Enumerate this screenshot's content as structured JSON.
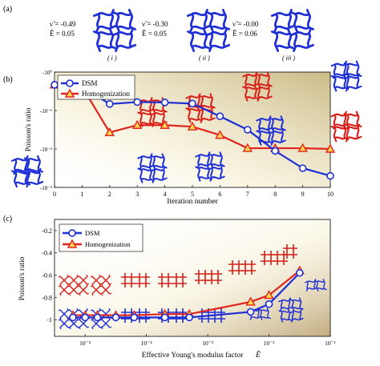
{
  "colors": {
    "dsm": "#1f2fd6",
    "homogenization": "#e0241c",
    "homog_marker_fill": "#ffd54f",
    "structure_blue": "#1f2fd6",
    "structure_red": "#d81e18",
    "shade": "#d8c98a"
  },
  "panel_a": {
    "label": "(a)",
    "items": [
      {
        "nu": "ν̃ = -0.49",
        "E": "Ẽ = 0.05",
        "tag": "( i )"
      },
      {
        "nu": "ν̃ = -0.30",
        "E": "Ẽ = 0.05",
        "tag": "( ii )"
      },
      {
        "nu": "ν̃ = -0.00",
        "E": "Ẽ = 0.06",
        "tag": "( iii )"
      }
    ]
  },
  "chart_data": [
    {
      "panel_label": "(b)",
      "type": "line",
      "xlabel": "Iteration number",
      "ylabel": "Poisson's ratio",
      "x": [
        0,
        1,
        2,
        3,
        4,
        5,
        6,
        7,
        8,
        9,
        10
      ],
      "xticks": [
        "0",
        "1",
        "2",
        "3",
        "4",
        "5",
        "6",
        "7",
        "8",
        "9",
        "10"
      ],
      "yscale": "log",
      "ytick_labels": [
        "-10⁰",
        "-10⁻¹",
        "-10⁻²",
        "-10⁻³"
      ],
      "ylim_exponent": [
        0,
        -3
      ],
      "legend": "top-left",
      "series": [
        {
          "name": "DSM",
          "marker": "circle",
          "y_exp": [
            -0.33,
            -0.38,
            -0.83,
            -0.78,
            -0.79,
            -0.82,
            -1.15,
            -1.5,
            -2.05,
            -2.5,
            -2.7
          ]
        },
        {
          "name": "Homogenization",
          "marker": "triangle",
          "y_exp": [
            -0.33,
            -0.38,
            -1.57,
            -1.38,
            -1.38,
            -1.42,
            -1.64,
            -1.98,
            -1.98,
            -1.98,
            -2.0
          ]
        }
      ]
    },
    {
      "panel_label": "(c)",
      "type": "line",
      "xlabel": "Effective Young's modulus factor",
      "xlabel_math": "Ẽ",
      "ylabel": "Poisson's ratio",
      "xscale": "log",
      "xtick_labels": [
        "10⁻⁵",
        "10⁻⁴",
        "10⁻³",
        "10⁻²",
        "10⁻¹"
      ],
      "xlim_exponent": [
        -5.5,
        -1
      ],
      "yticks": [
        -1,
        -0.8,
        -0.6,
        -0.4,
        -0.2
      ],
      "ytick_labels": [
        "-1",
        "-0.8",
        "-0.6",
        "-0.4",
        "-0.2"
      ],
      "ylim": [
        -1.15,
        -0.1
      ],
      "legend": "top-left",
      "series": [
        {
          "name": "DSM",
          "marker": "circle",
          "x_exp": [
            -5.2,
            -5.0,
            -4.8,
            -4.5,
            -4.2,
            -3.7,
            -3.3,
            -2.3,
            -2.0,
            -1.5
          ],
          "y": [
            -0.98,
            -0.98,
            -0.98,
            -0.98,
            -0.98,
            -0.98,
            -0.98,
            -0.93,
            -0.86,
            -0.58
          ]
        },
        {
          "name": "Homogenization",
          "marker": "triangle",
          "x_exp": [
            -5.2,
            -5.0,
            -4.8,
            -4.5,
            -4.2,
            -3.7,
            -3.3,
            -2.3,
            -2.0,
            -1.5
          ],
          "y": [
            -0.96,
            -0.96,
            -0.96,
            -0.96,
            -0.96,
            -0.95,
            -0.95,
            -0.84,
            -0.78,
            -0.56
          ]
        }
      ]
    }
  ]
}
